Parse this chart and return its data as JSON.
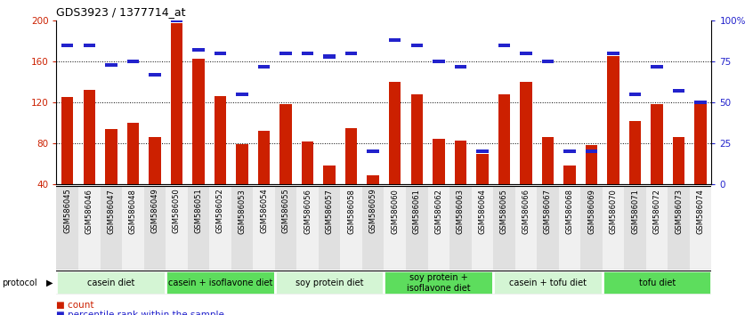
{
  "title": "GDS3923 / 1377714_at",
  "samples": [
    "GSM586045",
    "GSM586046",
    "GSM586047",
    "GSM586048",
    "GSM586049",
    "GSM586050",
    "GSM586051",
    "GSM586052",
    "GSM586053",
    "GSM586054",
    "GSM586055",
    "GSM586056",
    "GSM586057",
    "GSM586058",
    "GSM586059",
    "GSM586060",
    "GSM586061",
    "GSM586062",
    "GSM586063",
    "GSM586064",
    "GSM586065",
    "GSM586066",
    "GSM586067",
    "GSM586068",
    "GSM586069",
    "GSM586070",
    "GSM586071",
    "GSM586072",
    "GSM586073",
    "GSM586074"
  ],
  "counts": [
    125,
    132,
    94,
    100,
    86,
    197,
    163,
    126,
    79,
    92,
    118,
    82,
    58,
    95,
    49,
    140,
    128,
    84,
    83,
    70,
    128,
    140,
    86,
    58,
    78,
    165,
    102,
    118,
    86,
    122
  ],
  "percentile_ranks": [
    85,
    85,
    73,
    75,
    67,
    100,
    82,
    80,
    55,
    72,
    80,
    80,
    78,
    80,
    20,
    88,
    85,
    75,
    72,
    20,
    85,
    80,
    75,
    20,
    20,
    80,
    55,
    72,
    57,
    50
  ],
  "groups": [
    {
      "label": "casein diet",
      "start": 0,
      "end": 5,
      "color": "#d4f5d4"
    },
    {
      "label": "casein + isoflavone diet",
      "start": 5,
      "end": 10,
      "color": "#5ddd5d"
    },
    {
      "label": "soy protein diet",
      "start": 10,
      "end": 15,
      "color": "#d4f5d4"
    },
    {
      "label": "soy protein +\nisoflavone diet",
      "start": 15,
      "end": 20,
      "color": "#5ddd5d"
    },
    {
      "label": "casein + tofu diet",
      "start": 20,
      "end": 25,
      "color": "#d4f5d4"
    },
    {
      "label": "tofu diet",
      "start": 25,
      "end": 30,
      "color": "#5ddd5d"
    }
  ],
  "ylim_left": [
    40,
    200
  ],
  "ylim_right": [
    0,
    100
  ],
  "yticks_left": [
    40,
    80,
    120,
    160,
    200
  ],
  "ytick_labels_left": [
    "40",
    "80",
    "120",
    "160",
    "200"
  ],
  "yticks_right": [
    0,
    25,
    50,
    75,
    100
  ],
  "ytick_labels_right": [
    "0",
    "25",
    "50",
    "75",
    "100%"
  ],
  "hgrid_vals": [
    80,
    120,
    160
  ],
  "bar_color": "#cc2000",
  "percentile_color": "#2222cc",
  "col_colors": [
    "#e0e0e0",
    "#f0f0f0"
  ],
  "title_fontsize": 9,
  "tick_fontsize": 7.5,
  "sample_fontsize": 6,
  "group_fontsize": 7
}
